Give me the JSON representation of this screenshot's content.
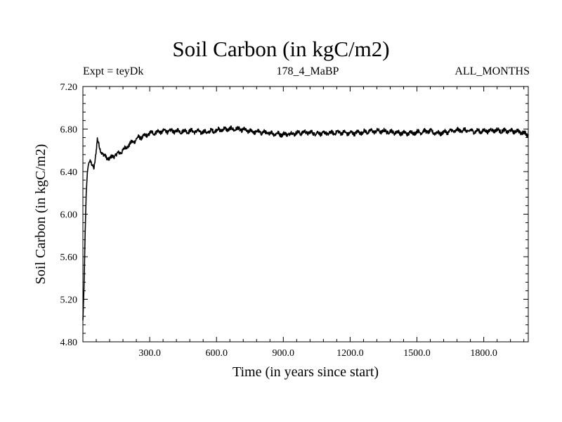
{
  "chart_data": {
    "type": "line",
    "title": "Soil Carbon (in kgC/m2)",
    "experiment_label": "Expt = teyDk",
    "subtitle": "178_4_MaBP",
    "period_label": "ALL_MONTHS",
    "xlabel": "Time (in years since start)",
    "ylabel": "Soil Carbon (in kgC/m2)",
    "xlim": [
      0,
      2000
    ],
    "ylim": [
      4.8,
      7.2
    ],
    "x_ticks": [
      300,
      600,
      900,
      1200,
      1500,
      1800
    ],
    "x_tick_labels": [
      "300.0",
      "600.0",
      "900.0",
      "1200.0",
      "1500.0",
      "1800.0"
    ],
    "y_ticks": [
      4.8,
      5.2,
      5.6,
      6.0,
      6.4,
      6.8,
      7.2
    ],
    "y_tick_labels": [
      "4.80",
      "5.20",
      "5.60",
      "6.00",
      "6.40",
      "6.80",
      "7.20"
    ],
    "series": [
      {
        "name": "Soil Carbon",
        "x": [
          0,
          5,
          10,
          15,
          20,
          25,
          30,
          40,
          50,
          60,
          65,
          70,
          80,
          90,
          100,
          120,
          140,
          160,
          180,
          200,
          225,
          250,
          275,
          300,
          330,
          360,
          400,
          450,
          500,
          550,
          600,
          650,
          700,
          750,
          800,
          850,
          900,
          950,
          1000,
          1050,
          1100,
          1150,
          1200,
          1250,
          1300,
          1350,
          1400,
          1450,
          1500,
          1550,
          1600,
          1650,
          1700,
          1750,
          1800,
          1850,
          1900,
          1950,
          2000
        ],
        "y": [
          5.0,
          5.3,
          5.8,
          6.2,
          6.4,
          6.48,
          6.5,
          6.46,
          6.44,
          6.6,
          6.7,
          6.66,
          6.6,
          6.56,
          6.54,
          6.52,
          6.55,
          6.57,
          6.6,
          6.64,
          6.68,
          6.72,
          6.73,
          6.76,
          6.77,
          6.78,
          6.78,
          6.78,
          6.78,
          6.77,
          6.79,
          6.8,
          6.8,
          6.78,
          6.77,
          6.76,
          6.75,
          6.76,
          6.77,
          6.76,
          6.76,
          6.77,
          6.76,
          6.77,
          6.78,
          6.78,
          6.77,
          6.76,
          6.77,
          6.78,
          6.76,
          6.78,
          6.79,
          6.78,
          6.78,
          6.79,
          6.78,
          6.78,
          6.75
        ]
      }
    ],
    "grid": false,
    "legend": "none",
    "line_color": "#000000"
  }
}
